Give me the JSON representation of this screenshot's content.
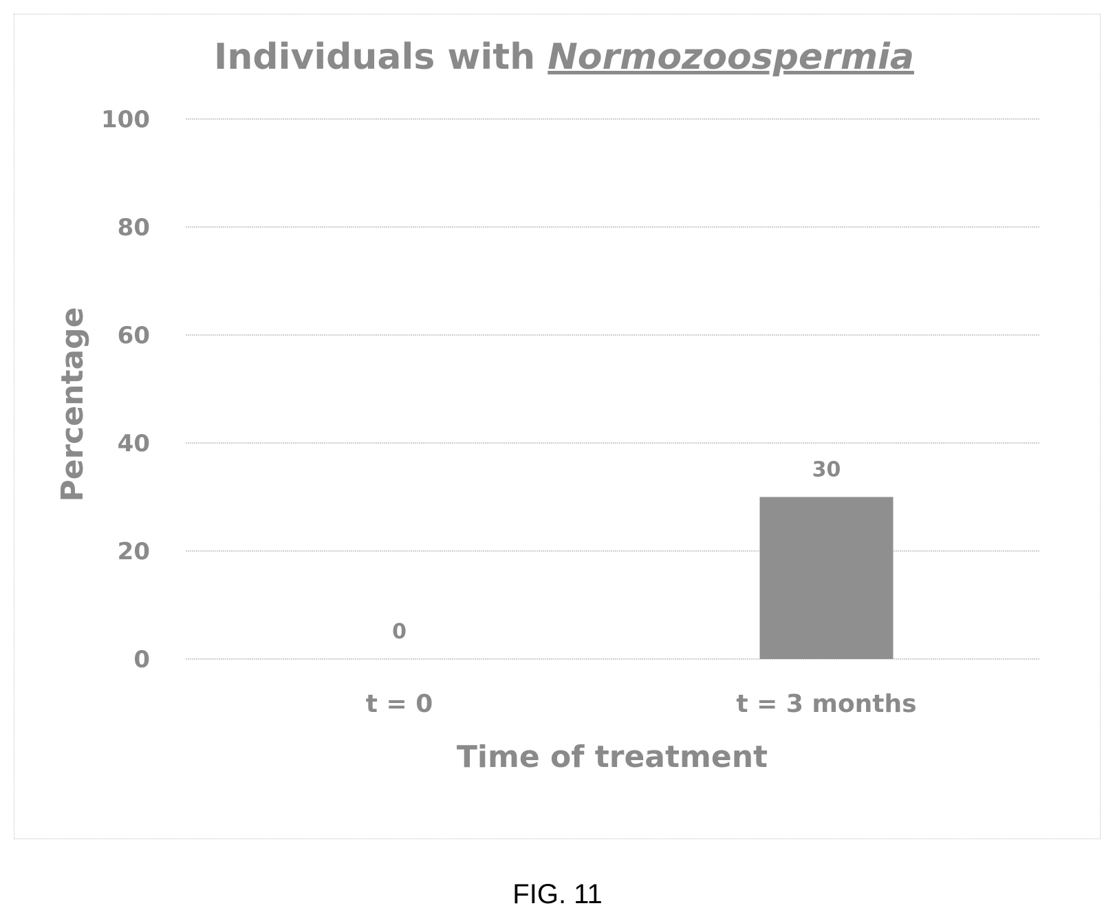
{
  "chart_data": {
    "type": "bar",
    "title_plain": "Individuals with ",
    "title_emphasis": "Normozoospermia",
    "categories": [
      "t = 0",
      "t = 3 months"
    ],
    "values": [
      0,
      30
    ],
    "data_labels": [
      "0",
      "30"
    ],
    "xlabel": "Time of treatment",
    "ylabel": "Percentage",
    "ylim": [
      0,
      100
    ],
    "yticks": [
      0,
      20,
      40,
      60,
      80,
      100
    ],
    "grid": true,
    "legend": "none",
    "bar_color": "#8f8f8f"
  },
  "caption": "FIG. 11"
}
